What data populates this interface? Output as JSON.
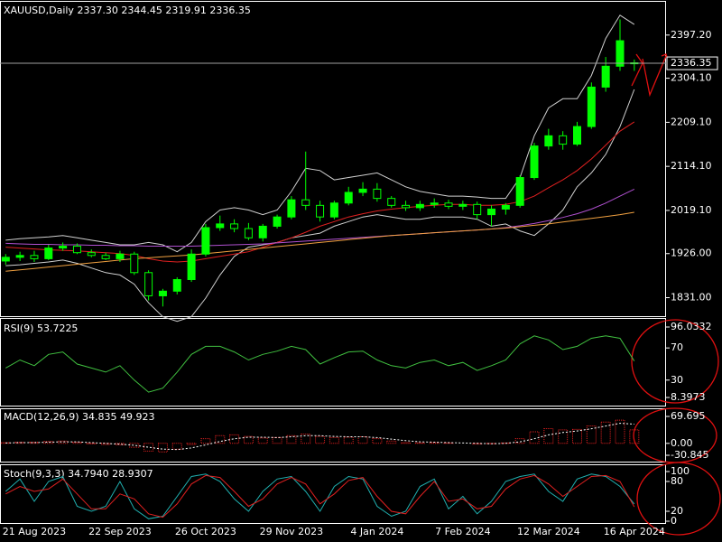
{
  "chart_data": [
    {
      "type": "candlestick",
      "title": "XAUUSD,Daily  2337.30 2344.45 2319.91 2336.35",
      "color": "#00ff00",
      "categories": [
        null,
        null,
        "21 Aug 2023",
        null,
        null,
        null,
        null,
        null,
        "22 Sep 2023",
        null,
        null,
        null,
        null,
        null,
        "26 Oct 2023",
        null,
        null,
        null,
        null,
        null,
        "29 Nov 2023",
        null,
        null,
        null,
        null,
        null,
        "4 Jan 2024",
        null,
        null,
        null,
        null,
        null,
        "7 Feb 2024",
        null,
        null,
        null,
        null,
        null,
        "12 Mar 2024",
        null,
        null,
        null,
        null,
        null,
        "16 Apr 2024"
      ],
      "open": [
        1910,
        1918,
        1922,
        1915,
        1938,
        1942,
        1928,
        1922,
        1915,
        1925,
        1885,
        1835,
        1845,
        1870,
        1925,
        1982,
        1990,
        1980,
        1960,
        1985,
        2005,
        2042,
        2030,
        2005,
        2035,
        2058,
        2065,
        2045,
        2030,
        2025,
        2032,
        2035,
        2028,
        2032,
        2010,
        2022,
        2030,
        2090,
        2158,
        2180,
        2162,
        2200,
        2285,
        2330,
        2337.3
      ],
      "high": [
        1925,
        1930,
        1932,
        1945,
        1950,
        1948,
        1935,
        1928,
        1932,
        1930,
        1890,
        1850,
        1875,
        1935,
        1990,
        2008,
        2000,
        1992,
        1990,
        2010,
        2050,
        2146,
        2040,
        2040,
        2070,
        2080,
        2078,
        2050,
        2040,
        2040,
        2045,
        2042,
        2040,
        2038,
        2030,
        2035,
        2095,
        2165,
        2195,
        2190,
        2210,
        2295,
        2350,
        2431,
        2344.45
      ],
      "low": [
        1902,
        1910,
        1908,
        1912,
        1932,
        1925,
        1918,
        1912,
        1908,
        1880,
        1825,
        1812,
        1838,
        1865,
        1920,
        1975,
        1972,
        1955,
        1952,
        1980,
        2000,
        2020,
        1995,
        2000,
        2030,
        2050,
        2038,
        2025,
        2018,
        2018,
        2025,
        2022,
        2020,
        2000,
        1985,
        2010,
        2025,
        2085,
        2150,
        2150,
        2158,
        2195,
        2275,
        2320,
        2319.91
      ],
      "close": [
        1918,
        1922,
        1915,
        1938,
        1942,
        1928,
        1922,
        1915,
        1925,
        1885,
        1835,
        1845,
        1870,
        1925,
        1982,
        1990,
        1980,
        1960,
        1985,
        2005,
        2042,
        2030,
        2005,
        2035,
        2058,
        2065,
        2045,
        2030,
        2025,
        2032,
        2035,
        2028,
        2032,
        2010,
        2022,
        2030,
        2090,
        2158,
        2180,
        2162,
        2200,
        2285,
        2330,
        2385,
        2336.35
      ],
      "series": [
        {
          "color": "#d0d0d0",
          "values": [
            1955,
            1958,
            1960,
            1962,
            1965,
            1960,
            1955,
            1950,
            1945,
            1945,
            1950,
            1945,
            1930,
            1950,
            1995,
            2020,
            2025,
            2020,
            2010,
            2020,
            2060,
            2110,
            2105,
            2085,
            2090,
            2095,
            2100,
            2085,
            2070,
            2060,
            2055,
            2050,
            2050,
            2048,
            2045,
            2045,
            2090,
            2180,
            2240,
            2260,
            2260,
            2310,
            2390,
            2440,
            2420
          ]
        },
        {
          "color": "#d0d0d0",
          "values": [
            1900,
            1902,
            1905,
            1908,
            1912,
            1905,
            1895,
            1885,
            1880,
            1860,
            1820,
            1790,
            1780,
            1790,
            1830,
            1880,
            1920,
            1940,
            1945,
            1950,
            1960,
            1965,
            1970,
            1985,
            1995,
            2005,
            2010,
            2005,
            2000,
            2000,
            2005,
            2005,
            2005,
            2000,
            1985,
            1990,
            1975,
            1965,
            1990,
            2020,
            2070,
            2100,
            2140,
            2200,
            2280
          ]
        },
        {
          "color": "#e02020",
          "values": [
            1940,
            1938,
            1936,
            1934,
            1933,
            1932,
            1930,
            1928,
            1926,
            1922,
            1915,
            1910,
            1908,
            1910,
            1915,
            1920,
            1925,
            1930,
            1940,
            1950,
            1960,
            1972,
            1985,
            1995,
            2005,
            2012,
            2018,
            2022,
            2025,
            2028,
            2030,
            2032,
            2032,
            2030,
            2030,
            2032,
            2038,
            2050,
            2068,
            2085,
            2105,
            2130,
            2160,
            2190,
            2210
          ]
        },
        {
          "color": "#b050d0",
          "values": [
            1948,
            1947,
            1946,
            1946,
            1945,
            1945,
            1944,
            1944,
            1943,
            1943,
            1942,
            1942,
            1942,
            1942,
            1943,
            1944,
            1945,
            1946,
            1947,
            1949,
            1951,
            1953,
            1955,
            1957,
            1959,
            1961,
            1963,
            1965,
            1967,
            1969,
            1971,
            1973,
            1975,
            1977,
            1979,
            1982,
            1986,
            1991,
            1997,
            2004,
            2012,
            2022,
            2035,
            2050,
            2065
          ]
        },
        {
          "color": "#f0a040",
          "values": [
            1888,
            1891,
            1894,
            1897,
            1900,
            1903,
            1906,
            1909,
            1912,
            1915,
            1917,
            1919,
            1921,
            1923,
            1926,
            1929,
            1932,
            1935,
            1938,
            1941,
            1944,
            1947,
            1950,
            1953,
            1956,
            1959,
            1962,
            1965,
            1967,
            1969,
            1971,
            1973,
            1975,
            1977,
            1979,
            1981,
            1984,
            1987,
            1990,
            1994,
            1998,
            2002,
            2006,
            2010,
            2015
          ]
        }
      ],
      "current_price": {
        "value": 2336.35,
        "label": "2336.35"
      },
      "ylim": [
        1795,
        2465
      ],
      "yticks": [
        {
          "value": 2397.2,
          "label": "2397.20"
        },
        {
          "value": 2304.1,
          "label": "2304.10"
        },
        {
          "value": 2209.1,
          "label": "2209.10"
        },
        {
          "value": 2114.1,
          "label": "2114.10"
        },
        {
          "value": 2019.1,
          "label": "2019.10"
        },
        {
          "value": 1926,
          "label": "1926.00"
        },
        {
          "value": 1831,
          "label": "1831.00"
        }
      ]
    },
    {
      "type": "line",
      "title": "RSI(9) 53.7225",
      "series": [
        {
          "color": "#40c040",
          "values": [
            45,
            55,
            48,
            62,
            65,
            50,
            45,
            40,
            48,
            30,
            15,
            20,
            40,
            62,
            72,
            72,
            65,
            55,
            62,
            66,
            72,
            68,
            50,
            58,
            65,
            66,
            55,
            48,
            45,
            52,
            55,
            48,
            52,
            42,
            48,
            55,
            75,
            85,
            80,
            68,
            72,
            82,
            85,
            82,
            53.7225
          ]
        }
      ],
      "ylim": [
        8.3973,
        96.0332
      ],
      "yticks": [
        96.0332,
        70,
        30,
        8.3973
      ]
    },
    {
      "type": "macd",
      "title": "MACD(12,26,9) 34.835 49.923",
      "series": [
        {
          "type": "bar",
          "color": "#e02020",
          "values": [
            2,
            3,
            3,
            5,
            6,
            3,
            -1,
            -3,
            -4,
            -10,
            -20,
            -22,
            -15,
            -3,
            12,
            20,
            22,
            18,
            14,
            15,
            20,
            24,
            18,
            15,
            16,
            17,
            12,
            6,
            2,
            1,
            2,
            1,
            0,
            -2,
            -1,
            1,
            12,
            30,
            38,
            35,
            36,
            45,
            55,
            60,
            34.835
          ]
        },
        {
          "type": "line",
          "color": "#ffffff",
          "dashed": true,
          "values": [
            1,
            2,
            2,
            3,
            4,
            4,
            2,
            0,
            -2,
            -5,
            -10,
            -15,
            -16,
            -12,
            -4,
            5,
            12,
            16,
            16,
            15,
            17,
            20,
            20,
            18,
            17,
            17,
            15,
            11,
            7,
            4,
            3,
            2,
            1,
            0,
            -1,
            0,
            4,
            12,
            22,
            28,
            32,
            38,
            45,
            52,
            49.923
          ]
        }
      ],
      "ylim": [
        -30.845,
        69.695
      ],
      "yticks": [
        69.695,
        {
          "value": 0,
          "label": "0.00"
        },
        -30.845
      ]
    },
    {
      "type": "line",
      "title": "Stoch(9,3,3) 34.7940 28.9307",
      "series": [
        {
          "color": "#20b0b0",
          "values": [
            60,
            85,
            40,
            80,
            90,
            30,
            20,
            30,
            80,
            25,
            5,
            10,
            50,
            90,
            95,
            80,
            45,
            20,
            60,
            85,
            90,
            60,
            20,
            70,
            90,
            85,
            30,
            10,
            20,
            70,
            85,
            25,
            50,
            15,
            40,
            80,
            90,
            95,
            60,
            40,
            85,
            95,
            90,
            70,
            34.794
          ]
        },
        {
          "color": "#e02020",
          "values": [
            55,
            70,
            60,
            65,
            85,
            55,
            25,
            25,
            55,
            45,
            15,
            8,
            35,
            75,
            92,
            88,
            60,
            30,
            45,
            75,
            88,
            75,
            35,
            55,
            82,
            88,
            50,
            20,
            15,
            50,
            80,
            40,
            45,
            25,
            30,
            65,
            85,
            92,
            75,
            50,
            70,
            90,
            92,
            80,
            28.9307
          ]
        }
      ],
      "ylim": [
        0,
        100
      ],
      "yticks": [
        100,
        80,
        20,
        0
      ]
    }
  ]
}
